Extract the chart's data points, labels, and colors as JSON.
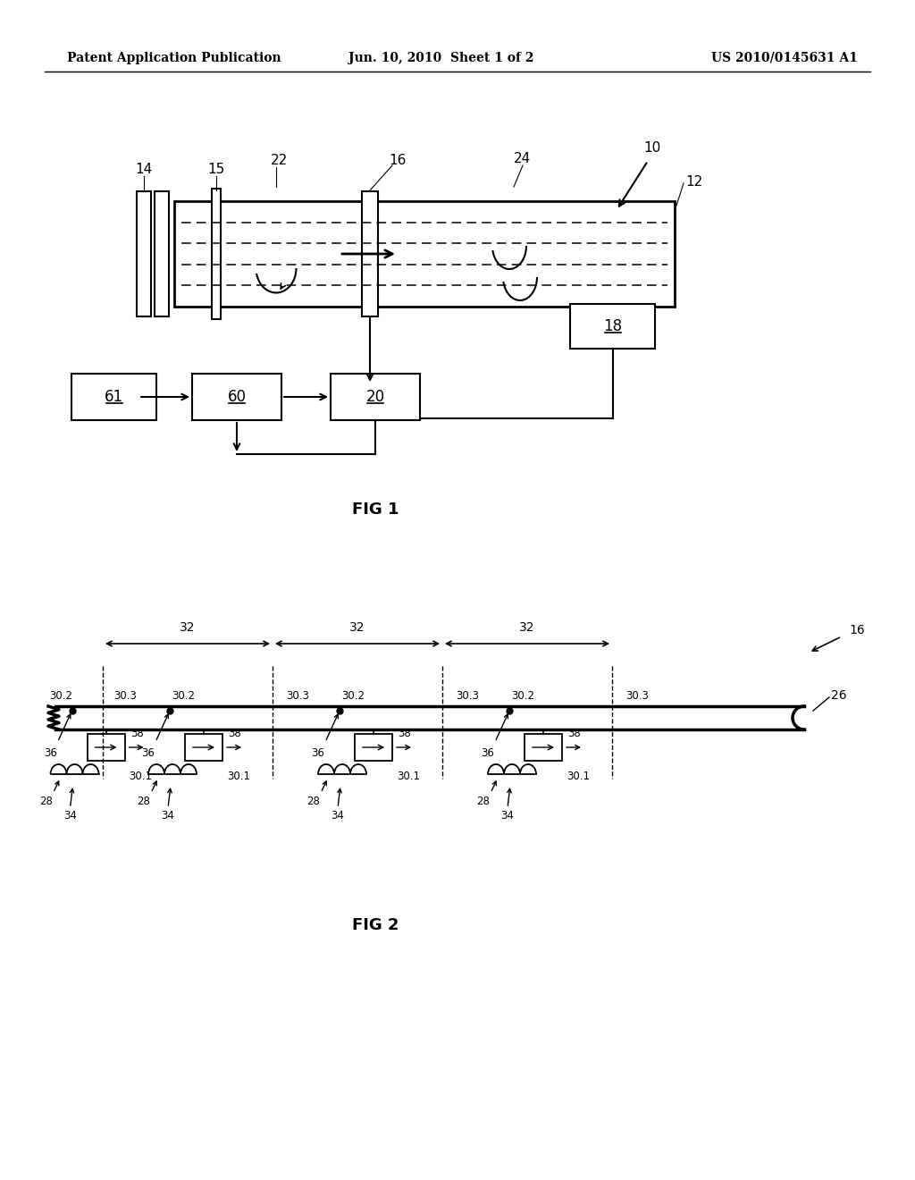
{
  "bg_color": "#ffffff",
  "header_left": "Patent Application Publication",
  "header_mid": "Jun. 10, 2010  Sheet 1 of 2",
  "header_right": "US 2010/0145631 A1",
  "fig1_label": "FIG 1",
  "fig2_label": "FIG 2"
}
